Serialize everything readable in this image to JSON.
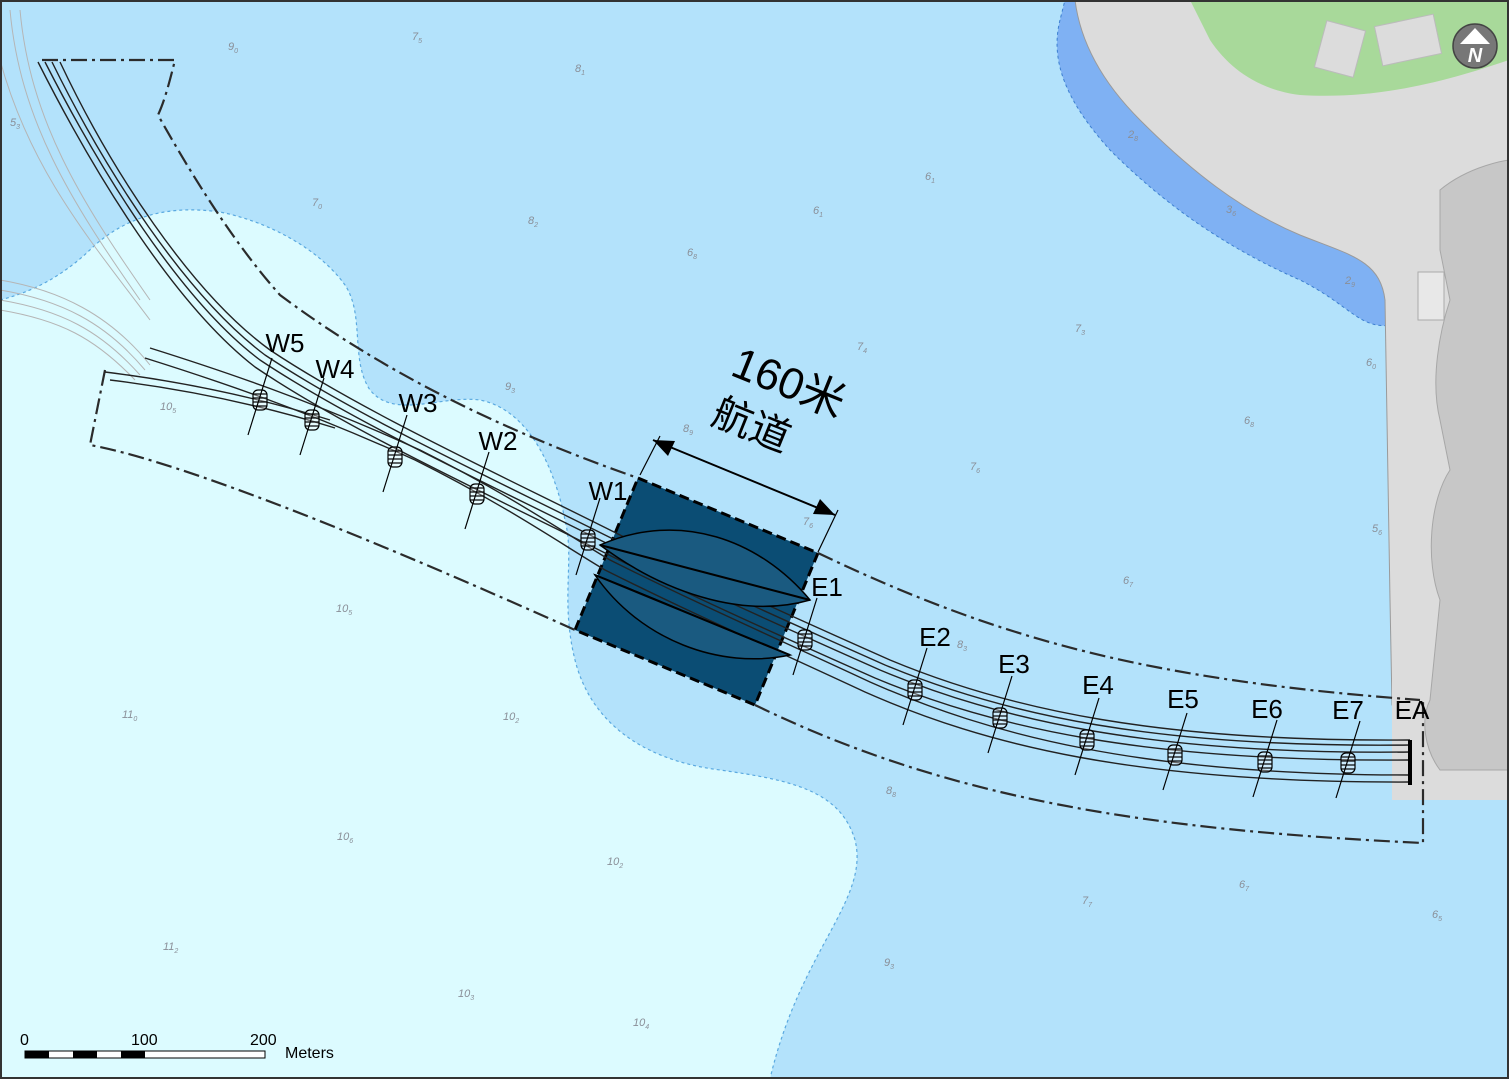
{
  "map": {
    "colors": {
      "deep_water": "#b3e2fb",
      "shallow_water": "#dcfbff",
      "shore_water": "#7fb1f3",
      "land": "#dcdcdc",
      "green_area": "#a8d99a",
      "navigation_channel": "#0b4d74",
      "line": "#2b2b2b"
    },
    "channel": {
      "width_label": "160米",
      "name_label": "航道"
    },
    "piers_west": [
      "W5",
      "W4",
      "W3",
      "W2",
      "W1"
    ],
    "piers_east": [
      "E1",
      "E2",
      "E3",
      "E4",
      "E5",
      "E6",
      "E7",
      "EA"
    ],
    "depth_soundings": [
      {
        "main": "9",
        "sub": "0"
      },
      {
        "main": "7",
        "sub": "5"
      },
      {
        "main": "8",
        "sub": "1"
      },
      {
        "main": "5",
        "sub": "3"
      },
      {
        "main": "7",
        "sub": "0"
      },
      {
        "main": "8",
        "sub": "2"
      },
      {
        "main": "6",
        "sub": "8"
      },
      {
        "main": "6",
        "sub": "1"
      },
      {
        "main": "6",
        "sub": "1"
      },
      {
        "main": "2",
        "sub": "8"
      },
      {
        "main": "3",
        "sub": "6"
      },
      {
        "main": "2",
        "sub": "9"
      },
      {
        "main": "7",
        "sub": "3"
      },
      {
        "main": "6",
        "sub": "0"
      },
      {
        "main": "7",
        "sub": "4"
      },
      {
        "main": "6",
        "sub": "8"
      },
      {
        "main": "9",
        "sub": "3"
      },
      {
        "main": "8",
        "sub": "9"
      },
      {
        "main": "7",
        "sub": "6"
      },
      {
        "main": "7",
        "sub": "6"
      },
      {
        "main": "10",
        "sub": "5"
      },
      {
        "main": "5",
        "sub": "6"
      },
      {
        "main": "6",
        "sub": "7"
      },
      {
        "main": "10",
        "sub": "5"
      },
      {
        "main": "8",
        "sub": "3"
      },
      {
        "main": "11",
        "sub": "0"
      },
      {
        "main": "10",
        "sub": "2"
      },
      {
        "main": "8",
        "sub": "8"
      },
      {
        "main": "10",
        "sub": "6"
      },
      {
        "main": "10",
        "sub": "2"
      },
      {
        "main": "6",
        "sub": "7"
      },
      {
        "main": "7",
        "sub": "7"
      },
      {
        "main": "6",
        "sub": "5"
      },
      {
        "main": "11",
        "sub": "2"
      },
      {
        "main": "9",
        "sub": "3"
      },
      {
        "main": "10",
        "sub": "3"
      },
      {
        "main": "10",
        "sub": "4"
      }
    ],
    "north_arrow": {
      "icon": "north-arrow-icon",
      "letter": "N"
    },
    "scale_bar": {
      "ticks": [
        "0",
        "100",
        "200"
      ],
      "unit": "Meters"
    }
  }
}
